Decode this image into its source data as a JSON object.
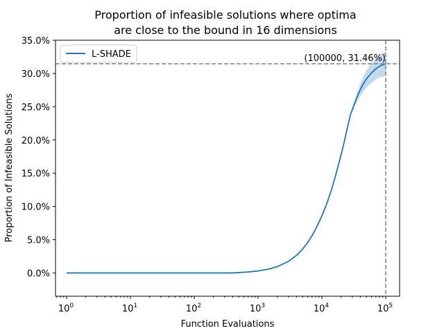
{
  "chart_data": {
    "type": "line",
    "title": [
      "Proportion of infeasible solutions where optima",
      "are close to the bound in 16 dimensions"
    ],
    "xlabel": "Function Evaluations",
    "ylabel": "Proportion of Infeasible Solutions",
    "x_scale": "log",
    "xlim": [
      0.67,
      165000
    ],
    "ylim": [
      -0.035,
      0.35
    ],
    "x_ticks": [
      {
        "value": 1,
        "base": "10",
        "exp": "0"
      },
      {
        "value": 10,
        "base": "10",
        "exp": "1"
      },
      {
        "value": 100,
        "base": "10",
        "exp": "2"
      },
      {
        "value": 1000,
        "base": "10",
        "exp": "3"
      },
      {
        "value": 10000,
        "base": "10",
        "exp": "4"
      },
      {
        "value": 100000,
        "base": "10",
        "exp": "5"
      }
    ],
    "y_ticks": [
      {
        "value": 0.0,
        "label": "0.0%"
      },
      {
        "value": 0.05,
        "label": "5.0%"
      },
      {
        "value": 0.1,
        "label": "10.0%"
      },
      {
        "value": 0.15,
        "label": "15.0%"
      },
      {
        "value": 0.2,
        "label": "20.0%"
      },
      {
        "value": 0.25,
        "label": "25.0%"
      },
      {
        "value": 0.3,
        "label": "30.0%"
      },
      {
        "value": 0.35,
        "label": "35.0%"
      }
    ],
    "grid": false,
    "legend_position": "top-left",
    "series": [
      {
        "name": "L-SHADE",
        "color": "#1f77b4",
        "band_color": "#aecde6",
        "x": [
          1,
          400,
          700,
          1000,
          1500,
          2000,
          3000,
          4000,
          5000,
          6000,
          7000,
          8000,
          10000,
          12000,
          14000,
          16000,
          18000,
          20000,
          22000,
          25000,
          28000,
          32000,
          36000,
          40000,
          45000,
          50000,
          60000,
          70000,
          80000,
          90000,
          100000
        ],
        "y": [
          0.0,
          0.0,
          0.0015,
          0.003,
          0.006,
          0.0095,
          0.0175,
          0.0265,
          0.036,
          0.046,
          0.056,
          0.066,
          0.086,
          0.105,
          0.124,
          0.143,
          0.161,
          0.178,
          0.194,
          0.218,
          0.238,
          0.253,
          0.266,
          0.276,
          0.285,
          0.292,
          0.301,
          0.307,
          0.311,
          0.313,
          0.3146
        ],
        "y_low": [
          0.0,
          0.0,
          0.0015,
          0.003,
          0.006,
          0.0095,
          0.0175,
          0.0265,
          0.036,
          0.046,
          0.056,
          0.066,
          0.086,
          0.105,
          0.124,
          0.143,
          0.161,
          0.178,
          0.194,
          0.217,
          0.236,
          0.249,
          0.259,
          0.266,
          0.273,
          0.279,
          0.286,
          0.291,
          0.294,
          0.295,
          0.297
        ],
        "y_high": [
          0.0,
          0.0,
          0.0015,
          0.003,
          0.006,
          0.0095,
          0.0175,
          0.0265,
          0.036,
          0.046,
          0.056,
          0.066,
          0.086,
          0.105,
          0.124,
          0.143,
          0.161,
          0.178,
          0.194,
          0.219,
          0.241,
          0.258,
          0.272,
          0.285,
          0.296,
          0.305,
          0.316,
          0.323,
          0.328,
          0.331,
          0.333
        ]
      }
    ],
    "annotation": {
      "text": "(100000, 31.46%)",
      "x": 100000,
      "y": 0.3146,
      "color": "#808080"
    }
  }
}
